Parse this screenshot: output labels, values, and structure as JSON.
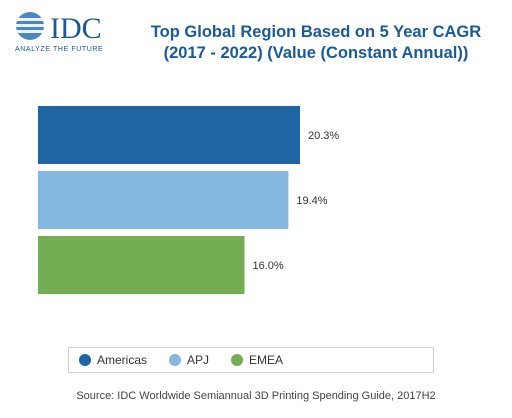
{
  "logo": {
    "text": "IDC",
    "tagline": "ANALYZE THE FUTURE",
    "color": "#1a5a96"
  },
  "chart_data": {
    "type": "bar",
    "orientation": "horizontal",
    "title": "Top Global Region Based on 5 Year CAGR (2017 - 2022) (Value (Constant Annual))",
    "categories": [
      "Americas",
      "APJ",
      "EMEA"
    ],
    "values": [
      20.3,
      19.4,
      16.0
    ],
    "value_labels": [
      "20.3%",
      "19.4%",
      "16.0%"
    ],
    "colors": [
      "#1f64a3",
      "#83b7e0",
      "#73ad54"
    ],
    "xlim": [
      0,
      25
    ],
    "grid": false,
    "legend_position": "bottom"
  },
  "source": "Source: IDC Worldwide Semiannual 3D Printing Spending Guide, 2017H2"
}
